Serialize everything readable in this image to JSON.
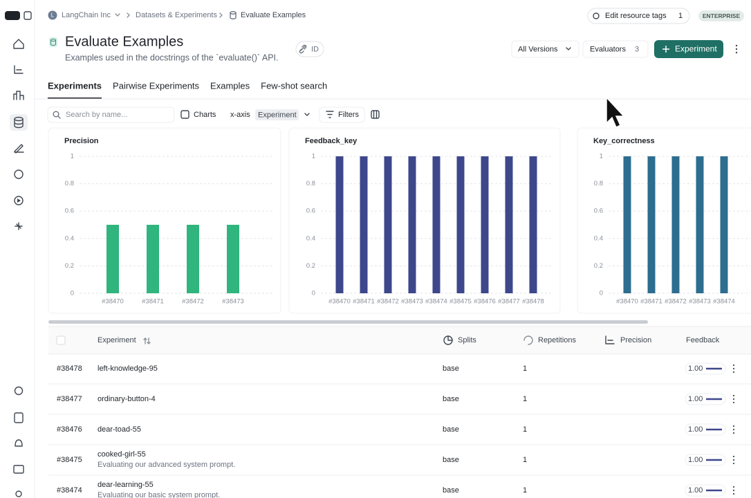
{
  "breadcrumb": {
    "org_initial": "L",
    "org": "LangChain Inc",
    "items": [
      "Datasets & Experiments",
      "Evaluate Examples"
    ]
  },
  "header_actions": {
    "resource_tags": "Edit resource tags",
    "resource_tags_count": "1",
    "plan": "ENTERPRISE"
  },
  "page": {
    "title": "Evaluate Examples",
    "description": "Examples used in the docstrings of the `evaluate()` API.",
    "id_button": "ID"
  },
  "toolbar": {
    "versions": "All Versions",
    "evaluators": "Evaluators",
    "evaluators_count": "3",
    "new_experiment": "Experiment"
  },
  "tabs": [
    "Experiments",
    "Pairwise Experiments",
    "Examples",
    "Few-shot search"
  ],
  "filters": {
    "search_placeholder": "Search by name...",
    "charts": "Charts",
    "x_axis": "x-axis",
    "x_axis_value": "Experiment",
    "filters": "Filters"
  },
  "chart_data": [
    {
      "type": "bar",
      "title": "Precision",
      "categories": [
        "#38470",
        "#38471",
        "#38472",
        "#38473"
      ],
      "values": [
        0.5,
        0.5,
        0.5,
        0.5
      ],
      "color": "#2fb57d",
      "ylim": [
        0,
        1
      ],
      "yticks": [
        0,
        0.2,
        0.4,
        0.6,
        0.8,
        1
      ],
      "grid": true
    },
    {
      "type": "bar",
      "title": "Feedback_key",
      "categories": [
        "#38470",
        "#38471",
        "#38472",
        "#38473",
        "#38474",
        "#38475",
        "#38476",
        "#38477",
        "#38478"
      ],
      "values": [
        1,
        1,
        1,
        1,
        1,
        1,
        1,
        1,
        1
      ],
      "color": "#3d478c",
      "ylim": [
        0,
        1
      ],
      "yticks": [
        0,
        0.2,
        0.4,
        0.6,
        0.8,
        1
      ],
      "grid": true
    },
    {
      "type": "bar",
      "title": "Key_correctness",
      "categories": [
        "#38470",
        "#38471",
        "#38472",
        "#38473",
        "#38474"
      ],
      "values": [
        1,
        1,
        1,
        1,
        1
      ],
      "color": "#2d6d8f",
      "ylim": [
        0,
        1
      ],
      "yticks": [
        0,
        0.2,
        0.4,
        0.6,
        0.8,
        1
      ],
      "grid": true
    }
  ],
  "table": {
    "columns": [
      "Experiment",
      "Splits",
      "Repetitions",
      "Precision",
      "Feedback"
    ],
    "rows": [
      {
        "id": "#38478",
        "name": "left-knowledge-95",
        "split": "base",
        "repetitions": "1",
        "feedback": "1.00"
      },
      {
        "id": "#38477",
        "name": "ordinary-button-4",
        "split": "base",
        "repetitions": "1",
        "feedback": "1.00"
      },
      {
        "id": "#38476",
        "name": "dear-toad-55",
        "split": "base",
        "repetitions": "1",
        "feedback": "1.00"
      },
      {
        "id": "#38475",
        "name": "cooked-girl-55",
        "description": "Evaluating our advanced system prompt.",
        "split": "base",
        "repetitions": "1",
        "feedback": "1.00"
      },
      {
        "id": "#38474",
        "name": "dear-learning-55",
        "description": "Evaluating our basic system prompt.",
        "split": "base",
        "repetitions": "1",
        "feedback": "1.00"
      }
    ]
  }
}
